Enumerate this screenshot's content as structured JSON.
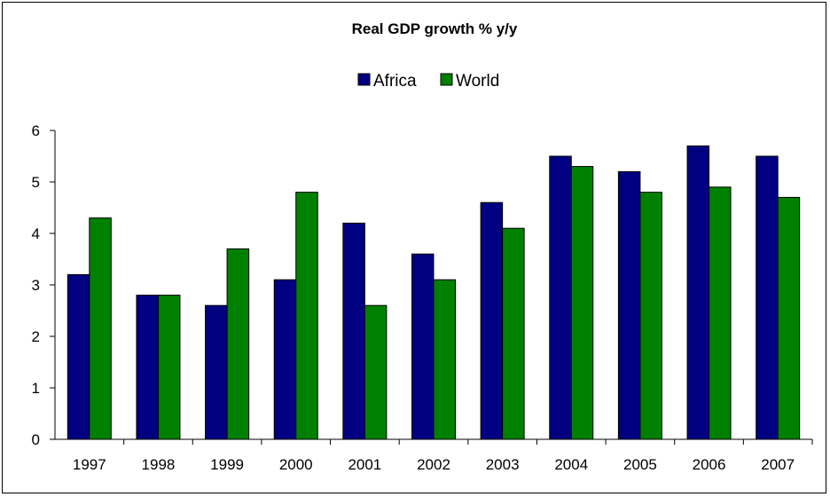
{
  "chart_data": {
    "type": "bar",
    "title": "Real GDP growth % y/y",
    "xlabel": "",
    "ylabel": "",
    "categories": [
      "1997",
      "1998",
      "1999",
      "2000",
      "2001",
      "2002",
      "2003",
      "2004",
      "2005",
      "2006",
      "2007"
    ],
    "series": [
      {
        "name": "Africa",
        "color": "#000080",
        "values": [
          3.2,
          2.8,
          2.6,
          3.1,
          4.2,
          3.6,
          4.6,
          5.5,
          5.2,
          5.7,
          5.5
        ]
      },
      {
        "name": "World",
        "color": "#008000",
        "values": [
          4.3,
          2.8,
          3.7,
          4.8,
          2.6,
          3.1,
          4.1,
          5.3,
          4.8,
          4.9,
          4.7
        ]
      }
    ],
    "ylim": [
      0,
      6
    ],
    "yticks": [
      "0",
      "1",
      "2",
      "3",
      "4",
      "5",
      "6"
    ],
    "grid": false,
    "legend_position": "top"
  }
}
